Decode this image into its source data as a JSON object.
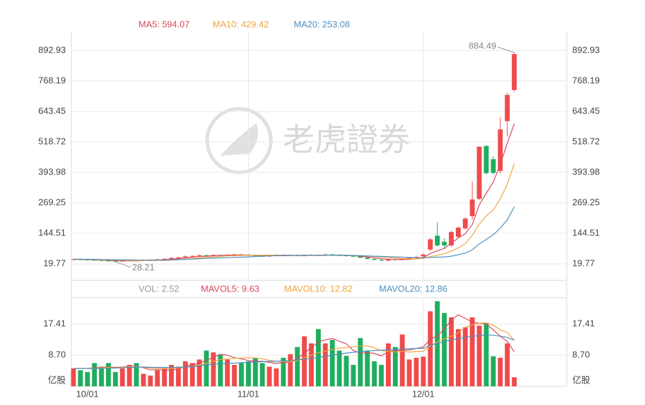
{
  "watermark": "老虎證券",
  "chart_data": [
    {
      "type": "candlestick",
      "up_color": "#ef4b4b",
      "down_color": "#1eae5e",
      "ylim": [
        -48,
        972
      ],
      "yticks": [
        892.93,
        768.19,
        643.45,
        518.72,
        393.98,
        269.25,
        144.51,
        19.77
      ],
      "grid": true,
      "open": [
        36,
        38,
        37,
        36,
        35,
        33,
        31,
        30,
        32,
        34,
        33,
        35,
        36,
        38,
        40,
        44,
        46,
        50,
        52,
        55,
        54,
        56,
        55,
        57,
        58,
        56,
        54,
        52,
        50,
        55,
        56,
        53,
        55,
        52,
        54,
        56,
        55,
        58,
        55,
        54,
        52,
        50,
        45,
        40,
        36,
        33,
        38,
        36,
        40,
        44,
        50,
        78,
        135,
        110,
        95,
        130,
        165,
        215,
        286,
        502,
        448,
        400,
        604,
        731
      ],
      "high": [
        41,
        41,
        40,
        39,
        38,
        36,
        34,
        35,
        37,
        37,
        38,
        39,
        41,
        43,
        47,
        49,
        53,
        55,
        58,
        58,
        59,
        59,
        60,
        61,
        61,
        59,
        57,
        55,
        58,
        59,
        59,
        58,
        58,
        57,
        59,
        59,
        61,
        61,
        58,
        57,
        55,
        53,
        48,
        43,
        39,
        41,
        41,
        43,
        47,
        51,
        62,
        125,
        190,
        125,
        155,
        172,
        210,
        357,
        500,
        505,
        460,
        620,
        720,
        884.49
      ],
      "low": [
        33,
        34,
        33,
        32,
        30,
        29.5,
        28.21,
        29,
        30,
        31,
        31,
        33,
        34,
        36,
        38,
        42,
        44,
        48,
        50,
        52,
        52,
        53,
        53,
        55,
        54,
        52,
        50,
        48,
        48,
        53,
        51,
        51,
        50,
        50,
        52,
        53,
        53,
        53,
        52,
        50,
        48,
        43,
        38,
        34,
        31,
        31,
        34,
        34,
        37,
        41,
        45,
        72,
        90,
        80,
        90,
        125,
        160,
        200,
        280,
        385,
        385,
        390,
        540,
        725
      ],
      "close": [
        38,
        37,
        36,
        35,
        33,
        31,
        30,
        32,
        34,
        33,
        35,
        36,
        38,
        40,
        44,
        46,
        50,
        52,
        55,
        54,
        56,
        55,
        57,
        58,
        56,
        54,
        52,
        50,
        55,
        56,
        53,
        55,
        52,
        54,
        56,
        55,
        58,
        55,
        54,
        52,
        50,
        45,
        40,
        36,
        33,
        38,
        36,
        40,
        44,
        48,
        58,
        120,
        95,
        95,
        150,
        168,
        205,
        283,
        499,
        391,
        392,
        570,
        711,
        878
      ],
      "series": [
        {
          "name": "MA5: 594.07",
          "color": "#d9475c",
          "values": [
            38,
            38,
            37,
            36,
            35,
            34,
            33,
            32,
            32,
            32,
            33,
            34,
            35,
            36,
            39,
            41,
            44,
            47,
            50,
            51,
            53,
            54,
            55,
            56,
            56,
            56,
            55,
            54,
            53,
            53,
            53,
            54,
            54,
            54,
            54,
            54,
            55,
            55,
            56,
            55,
            54,
            51,
            48,
            45,
            41,
            38,
            37,
            37,
            38,
            41,
            45,
            62,
            73,
            83,
            104,
            126,
            143,
            180,
            261,
            309,
            354,
            427,
            513,
            594.07
          ]
        },
        {
          "name": "MA10: 429.42",
          "color": "#f0a43c",
          "values": [
            38,
            38,
            38,
            37,
            36,
            36,
            35,
            34,
            33,
            33,
            33,
            33,
            34,
            34,
            35,
            37,
            39,
            41,
            44,
            46,
            48,
            50,
            52,
            53,
            54,
            55,
            55,
            55,
            55,
            55,
            55,
            55,
            54,
            54,
            54,
            54,
            54,
            55,
            55,
            55,
            54,
            53,
            52,
            50,
            48,
            46,
            43,
            41,
            40,
            40,
            42,
            49,
            55,
            61,
            72,
            85,
            102,
            137,
            182,
            216,
            240,
            285,
            346,
            429.42
          ]
        },
        {
          "name": "MA20: 253.08",
          "color": "#4a8fc0",
          "values": [
            39,
            39,
            38,
            38,
            37,
            37,
            36,
            36,
            36,
            35,
            35,
            35,
            35,
            35,
            36,
            37,
            38,
            39,
            41,
            42,
            43,
            44,
            45,
            46,
            47,
            48,
            50,
            51,
            52,
            53,
            54,
            54,
            54,
            55,
            55,
            55,
            55,
            55,
            55,
            54,
            54,
            53,
            52,
            51,
            50,
            49,
            48,
            47,
            46,
            45,
            44,
            46,
            47,
            48,
            51,
            57,
            64,
            77,
            101,
            120,
            139,
            166,
            200,
            253.08
          ]
        }
      ]
    },
    {
      "type": "bar",
      "categories": [
        null,
        null,
        "10/01",
        null,
        null,
        null,
        null,
        null,
        null,
        null,
        null,
        null,
        null,
        null,
        null,
        null,
        null,
        null,
        null,
        null,
        null,
        null,
        null,
        null,
        null,
        "11/01",
        null,
        null,
        null,
        null,
        null,
        null,
        null,
        null,
        null,
        null,
        null,
        null,
        null,
        null,
        null,
        null,
        null,
        null,
        null,
        null,
        null,
        null,
        null,
        null,
        "12/01",
        null,
        null,
        null,
        null,
        null,
        null,
        null,
        null,
        null,
        null,
        null,
        null,
        null
      ],
      "ylim": [
        0,
        24.8
      ],
      "yticks": [
        {
          "value": 17.41,
          "label": "17.41"
        },
        {
          "value": 8.7,
          "label": "8.70"
        },
        {
          "value": 0,
          "label": "亿股"
        }
      ],
      "grid": true,
      "series": [
        {
          "name": "VOL: 2.52",
          "color": "#999999",
          "values": [
            5,
            4.5,
            4,
            6.5,
            5.5,
            6.5,
            4,
            5,
            6,
            6.5,
            3.5,
            3,
            4.5,
            5,
            6,
            5.5,
            7,
            6.5,
            7.5,
            10,
            9.5,
            9,
            7.5,
            6,
            6.5,
            7,
            8,
            6.5,
            5.5,
            5,
            8,
            9,
            11,
            14,
            12,
            16,
            12,
            13,
            10,
            8.5,
            6,
            13.5,
            10,
            7,
            6,
            12,
            11,
            14.5,
            7.5,
            8,
            8.3,
            21,
            23.8,
            20.5,
            19.3,
            16,
            16.5,
            19.3,
            17,
            17.6,
            8.4,
            8,
            12,
            2.52
          ]
        },
        {
          "name": "MAVOL5: 9.63",
          "color": "#d9475c",
          "values": [
            5,
            5,
            5,
            5.2,
            5.3,
            5.4,
            5.3,
            5.4,
            5.6,
            5.6,
            5.2,
            4.6,
            4.7,
            4.5,
            4.6,
            4.8,
            5.6,
            6,
            6.5,
            7.3,
            8.1,
            8.9,
            8.7,
            8,
            7.7,
            7.2,
            7,
            7,
            6.7,
            6.4,
            6.6,
            6.8,
            7.7,
            9.4,
            10.8,
            12.4,
            13,
            13.4,
            12.6,
            11.9,
            10,
            9.3,
            9.4,
            9.2,
            8.5,
            9.7,
            10,
            10.1,
            10.2,
            10.6,
            11,
            13.2,
            14,
            16,
            18.6,
            20,
            19,
            18,
            17.6,
            17.4,
            15.8,
            14,
            12.6,
            9.63
          ]
        },
        {
          "name": "MAVOL10: 12.82",
          "color": "#f0a43c",
          "values": [
            5,
            5,
            5,
            5,
            5.2,
            5.3,
            5.2,
            5.3,
            5.5,
            5.5,
            5.3,
            5.1,
            5,
            5,
            5,
            5.1,
            5.4,
            5.6,
            6,
            6.4,
            7,
            7.5,
            7.7,
            7.8,
            7.9,
            8,
            7.9,
            7.7,
            7.3,
            7,
            6.9,
            6.9,
            7.2,
            8,
            8.7,
            9.4,
            9.8,
            10.3,
            10.7,
            10.8,
            11,
            11.3,
            11.3,
            10.8,
            10,
            9.7,
            9.6,
            9.8,
            9.6,
            9.7,
            9.8,
            11.3,
            12.4,
            13.3,
            14,
            15,
            16.5,
            17.2,
            17.6,
            17.8,
            17.1,
            15.8,
            15.1,
            12.82
          ]
        },
        {
          "name": "MAVOL20: 12.86",
          "color": "#4a8fc0",
          "values": [
            5,
            5,
            5,
            5,
            5,
            5.1,
            5.1,
            5.2,
            5.3,
            5.4,
            5.4,
            5.3,
            5.3,
            5.3,
            5.3,
            5.3,
            5.4,
            5.5,
            5.7,
            6,
            6.2,
            6.3,
            6.4,
            6.5,
            6.6,
            6.7,
            6.8,
            6.9,
            7,
            7,
            7.1,
            7.2,
            7.4,
            7.6,
            7.8,
            8.1,
            8.4,
            8.7,
            9,
            9.3,
            9.5,
            9.7,
            9.9,
            10,
            10.1,
            10.2,
            10.3,
            10.5,
            10.5,
            10.6,
            10.6,
            11.5,
            12,
            12.5,
            13,
            13.3,
            13.7,
            14,
            14.2,
            14.4,
            14.3,
            14,
            13.7,
            12.86
          ]
        }
      ]
    }
  ]
}
